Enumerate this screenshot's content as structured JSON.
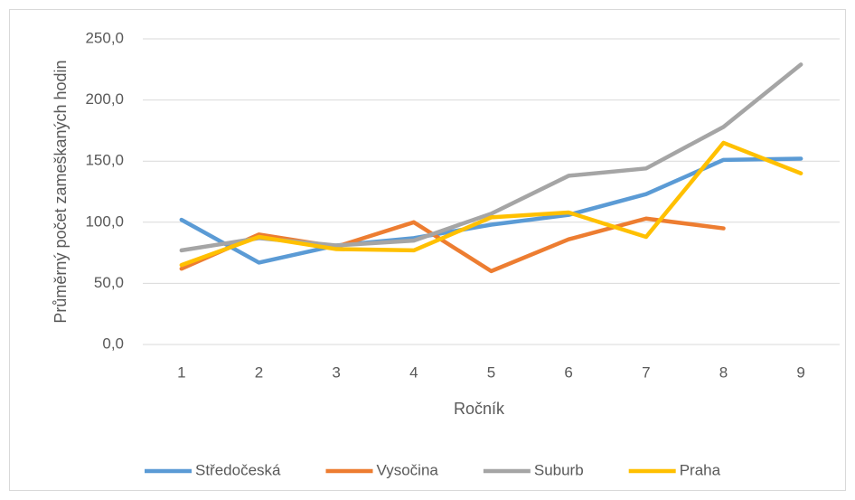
{
  "chart_data": {
    "type": "line",
    "y_label": "Průměrný počet zameškaných hodin",
    "x_label": "Ročník",
    "categories": [
      "1",
      "2",
      "3",
      "4",
      "5",
      "6",
      "7",
      "8",
      "9"
    ],
    "series": [
      {
        "name": "Středočeská",
        "color": "#5b9bd5",
        "values": [
          102,
          67,
          81,
          87,
          98,
          106,
          123,
          151,
          152
        ]
      },
      {
        "name": "Vysočina",
        "color": "#ed7d31",
        "values": [
          62,
          90,
          80,
          100,
          60,
          86,
          103,
          95,
          null
        ]
      },
      {
        "name": "Suburb",
        "color": "#a5a5a5",
        "values": [
          77,
          87,
          81,
          85,
          107,
          138,
          144,
          178,
          229
        ]
      },
      {
        "name": "Praha",
        "color": "#ffc000",
        "values": [
          65,
          88,
          78,
          77,
          104,
          108,
          88,
          165,
          140
        ]
      }
    ],
    "ylim": [
      0,
      250
    ],
    "yticks": [
      {
        "value": 0,
        "label": "0,0"
      },
      {
        "value": 50,
        "label": "50,0"
      },
      {
        "value": 100,
        "label": "100,0"
      },
      {
        "value": 150,
        "label": "150,0"
      },
      {
        "value": 200,
        "label": "200,0"
      },
      {
        "value": 250,
        "label": "250,0"
      }
    ],
    "grid": true,
    "legend": "bottom"
  }
}
